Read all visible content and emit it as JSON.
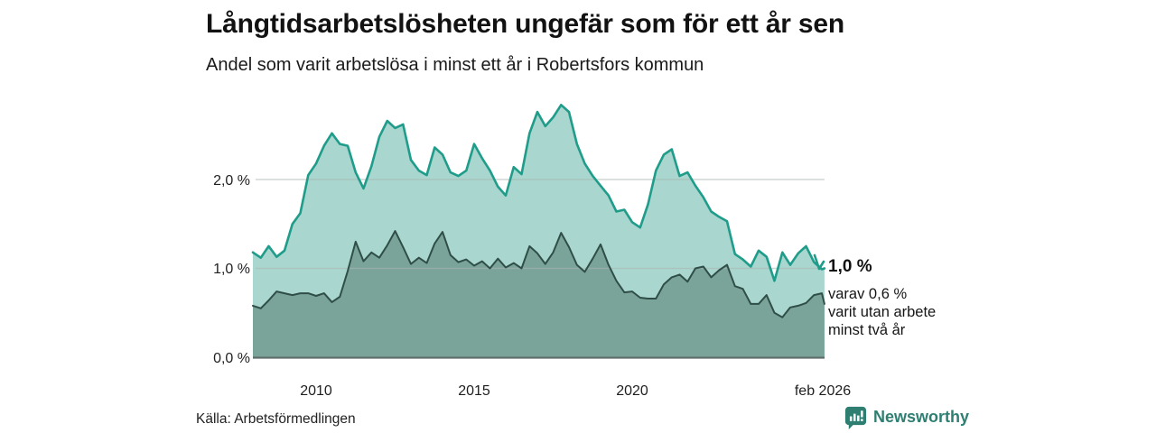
{
  "header": {},
  "chart_data": {
    "type": "area",
    "title": "Långtidsarbetslösheten ungefär som för ett år sen",
    "subtitle": "Andel som varit arbetslösa i minst ett år i Robertsfors kommun",
    "x_range": [
      2008,
      2026.083
    ],
    "ylim": [
      0,
      2.9
    ],
    "grid": "horizontal only",
    "legend": "none (direct labels at line ends)",
    "y_ticks": [
      {
        "value": 0,
        "label": "0,0 %"
      },
      {
        "value": 1,
        "label": "1,0 %"
      },
      {
        "value": 2,
        "label": "2,0 %"
      }
    ],
    "x_ticks": [
      {
        "value": 2010,
        "label": "2010"
      },
      {
        "value": 2015,
        "label": "2015"
      },
      {
        "value": 2020,
        "label": "2020"
      },
      {
        "value": 2026.083,
        "label": "feb 2026"
      }
    ],
    "x": [
      2008,
      2008.25,
      2008.5,
      2008.75,
      2009,
      2009.25,
      2009.5,
      2009.75,
      2010,
      2010.25,
      2010.5,
      2010.75,
      2011,
      2011.25,
      2011.5,
      2011.75,
      2012,
      2012.25,
      2012.5,
      2012.75,
      2013,
      2013.25,
      2013.5,
      2013.75,
      2014,
      2014.25,
      2014.5,
      2014.75,
      2015,
      2015.25,
      2015.5,
      2015.75,
      2016,
      2016.25,
      2016.5,
      2016.75,
      2017,
      2017.25,
      2017.5,
      2017.75,
      2018,
      2018.25,
      2018.5,
      2018.75,
      2019,
      2019.25,
      2019.5,
      2019.75,
      2020,
      2020.25,
      2020.5,
      2020.75,
      2021,
      2021.25,
      2021.5,
      2021.75,
      2022,
      2022.25,
      2022.5,
      2022.75,
      2023,
      2023.25,
      2023.5,
      2023.75,
      2024,
      2024.25,
      2024.5,
      2024.75,
      2025,
      2025.25,
      2025.5,
      2025.75,
      2026,
      2026.083
    ],
    "series": [
      {
        "name": "Arbetslösa minst ett år (andel, %)",
        "stroke": "#1f9c8a",
        "fill": "#a9d6ce",
        "end_value_label": "1,0 %",
        "values": [
          1.18,
          1.12,
          1.25,
          1.13,
          1.2,
          1.5,
          1.62,
          2.05,
          2.18,
          2.38,
          2.52,
          2.4,
          2.38,
          2.08,
          1.9,
          2.15,
          2.48,
          2.66,
          2.58,
          2.62,
          2.22,
          2.1,
          2.05,
          2.36,
          2.28,
          2.08,
          2.04,
          2.1,
          2.4,
          2.24,
          2.1,
          1.92,
          1.82,
          2.14,
          2.06,
          2.52,
          2.76,
          2.6,
          2.7,
          2.84,
          2.76,
          2.4,
          2.18,
          2.04,
          1.93,
          1.82,
          1.64,
          1.66,
          1.52,
          1.46,
          1.72,
          2.1,
          2.28,
          2.34,
          2.04,
          2.08,
          1.93,
          1.8,
          1.64,
          1.58,
          1.53,
          1.16,
          1.1,
          1.02,
          1.2,
          1.13,
          0.86,
          1.18,
          1.04,
          1.17,
          1.25,
          1.07,
          0.99,
          1.0
        ]
      },
      {
        "name": "Varav utan arbete minst två år (andel, %)",
        "stroke": "#2f4e48",
        "fill": "#7aa49a",
        "end_value_label": "varav 0,6 %",
        "values": [
          0.58,
          0.55,
          0.64,
          0.74,
          0.72,
          0.7,
          0.72,
          0.72,
          0.69,
          0.72,
          0.62,
          0.68,
          0.97,
          1.3,
          1.08,
          1.18,
          1.12,
          1.26,
          1.42,
          1.24,
          1.05,
          1.12,
          1.06,
          1.28,
          1.41,
          1.15,
          1.07,
          1.1,
          1.03,
          1.08,
          1.0,
          1.11,
          1.01,
          1.06,
          1.0,
          1.25,
          1.17,
          1.05,
          1.18,
          1.4,
          1.24,
          1.04,
          0.96,
          1.11,
          1.27,
          1.04,
          0.86,
          0.73,
          0.74,
          0.67,
          0.66,
          0.66,
          0.82,
          0.9,
          0.93,
          0.85,
          1.0,
          1.02,
          0.9,
          0.98,
          1.04,
          0.8,
          0.77,
          0.6,
          0.6,
          0.7,
          0.5,
          0.45,
          0.56,
          0.58,
          0.61,
          0.7,
          0.72,
          0.6
        ]
      }
    ],
    "annotation": {
      "value": "1,0 %",
      "line1": "varav 0,6 %",
      "line2": "varit utan arbete",
      "line3": "minst två år"
    },
    "colors": {
      "grid": "#aab6b2",
      "axis": "#5e6e6a",
      "accent_teal": "#1f9c8a",
      "dark_green": "#2f4e48",
      "brand_teal": "#2e7f72"
    }
  },
  "footer": {
    "source": "Källa: Arbetsförmedlingen",
    "brand": "Newsworthy"
  }
}
